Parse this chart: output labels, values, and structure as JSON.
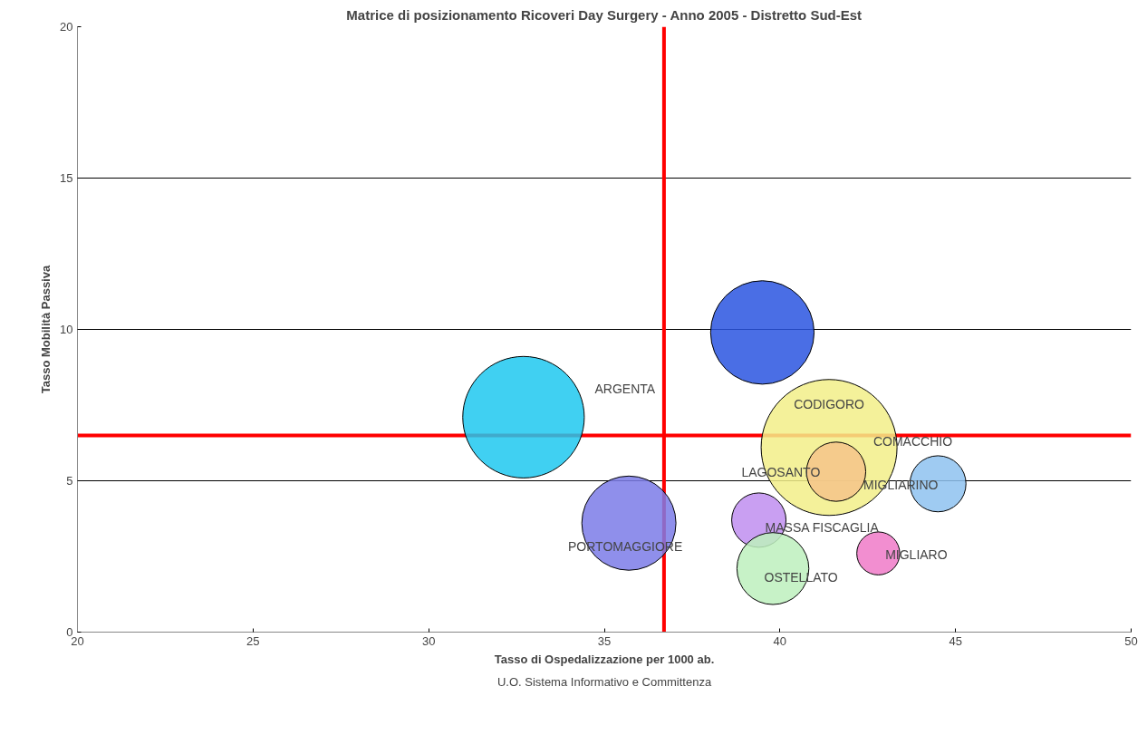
{
  "chart_data": {
    "type": "bubble",
    "title": "Matrice di posizionamento Ricoveri Day Surgery - Anno 2005 - Distretto Sud-Est",
    "xlabel": "Tasso di Ospedalizzazione per 1000 ab.",
    "ylabel": "Tasso Mobilità Passiva",
    "series": [
      {
        "name": "ARGENTA",
        "color": "#1ec8f0",
        "x": [
          32.7
        ],
        "values": [
          7.1
        ],
        "sizes": [
          0.8
        ]
      },
      {
        "color": "#2a55e0",
        "x": [
          39.5
        ],
        "values": [
          9.9
        ],
        "sizes": [
          0.58
        ]
      },
      {
        "name": "PORTOMAGGIORE",
        "color": "#7b7be8",
        "x": [
          35.7
        ],
        "values": [
          3.6
        ],
        "sizes": [
          0.48
        ]
      },
      {
        "name": "CODIGORO",
        "color": "#f2ee88",
        "x": [
          41.4
        ],
        "values": [
          6.1
        ],
        "sizes": [
          1
        ]
      },
      {
        "name": "LAGOSANTO",
        "color": "#f5c48a",
        "x": [
          41.6
        ],
        "values": [
          5.3
        ],
        "sizes": [
          0.19
        ]
      },
      {
        "name": "MIGLIARINO",
        "color": "#8ec2f0",
        "x": [
          44.5
        ],
        "values": [
          4.9
        ],
        "sizes": [
          0.17
        ]
      },
      {
        "name": "MASSA FISCAGLIA",
        "color": "#c08ef0",
        "x": [
          39.4
        ],
        "values": [
          3.7
        ],
        "sizes": [
          0.16
        ]
      },
      {
        "name": "OSTELLATO",
        "color": "#bdf0bd",
        "x": [
          39.8
        ],
        "values": [
          2.1
        ],
        "sizes": [
          0.28
        ]
      },
      {
        "name": "MIGLIARO",
        "color": "#f07ac8",
        "x": [
          42.8
        ],
        "values": [
          2.6
        ],
        "sizes": [
          0.1
        ]
      }
    ],
    "xlim": [
      20,
      50
    ],
    "ylim": [
      0,
      20
    ],
    "xticks": [
      20,
      25,
      30,
      35,
      40,
      45,
      50
    ],
    "yticks": [
      0,
      5,
      10,
      15,
      20
    ],
    "grid": "y",
    "ref_lines": [
      {
        "axis": "x",
        "value": 36.7,
        "color": "#ff0000"
      },
      {
        "axis": "y",
        "value": 6.5,
        "color": "#ff0000"
      }
    ],
    "annotations": [
      "COMACCHIO",
      "U.O. Sistema Informativo e Committenza"
    ]
  }
}
